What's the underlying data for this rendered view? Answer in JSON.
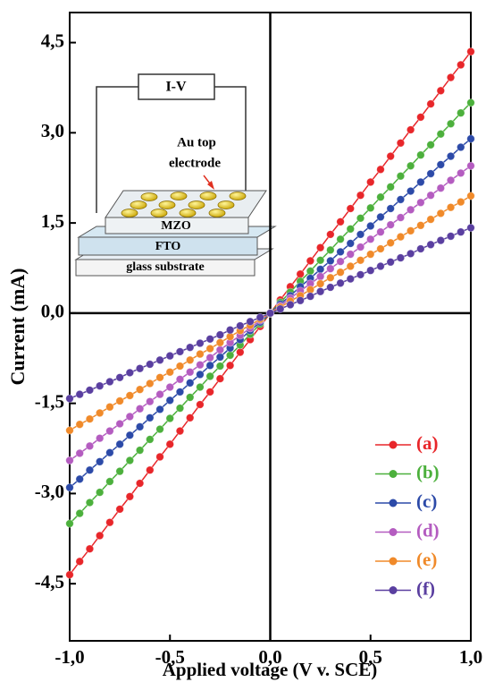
{
  "chart_data": {
    "type": "line",
    "xlabel": "Applied voltage (V v. SCE)",
    "ylabel": "Current (mA)",
    "xlim": [
      -1,
      1
    ],
    "ylim": [
      -5.45,
      5.0
    ],
    "xticks": [
      {
        "value": -1,
        "label": "-1,0"
      },
      {
        "value": -0.5,
        "label": "-0,5"
      },
      {
        "value": 0,
        "label": "0,0"
      },
      {
        "value": 0.5,
        "label": "0,5"
      },
      {
        "value": 1,
        "label": "1,0"
      }
    ],
    "yticks": [
      {
        "value": -4.5,
        "label": "-4,5"
      },
      {
        "value": -3,
        "label": "-3,0"
      },
      {
        "value": -1.5,
        "label": "-1,5"
      },
      {
        "value": 0,
        "label": "0,0"
      },
      {
        "value": 1.5,
        "label": "1,5"
      },
      {
        "value": 3,
        "label": "3,0"
      },
      {
        "value": 4.5,
        "label": "4,5"
      }
    ],
    "x": [
      -1,
      -0.95,
      -0.9,
      -0.85,
      -0.8,
      -0.75,
      -0.7,
      -0.65,
      -0.6,
      -0.55,
      -0.5,
      -0.45,
      -0.4,
      -0.35,
      -0.3,
      -0.25,
      -0.2,
      -0.15,
      -0.1,
      -0.05,
      0,
      0.05,
      0.1,
      0.15,
      0.2,
      0.25,
      0.3,
      0.35,
      0.4,
      0.45,
      0.5,
      0.55,
      0.6,
      0.65,
      0.7,
      0.75,
      0.8,
      0.85,
      0.9,
      0.95,
      1
    ],
    "series": [
      {
        "name": "(a)",
        "color": "#e8262a",
        "values": [
          -4.35,
          -4.13,
          -3.92,
          -3.7,
          -3.48,
          -3.26,
          -3.05,
          -2.83,
          -2.61,
          -2.39,
          -2.18,
          -1.96,
          -1.74,
          -1.52,
          -1.31,
          -1.09,
          -0.87,
          -0.65,
          -0.44,
          -0.22,
          0,
          0.22,
          0.44,
          0.65,
          0.87,
          1.09,
          1.31,
          1.52,
          1.74,
          1.96,
          2.18,
          2.39,
          2.61,
          2.83,
          3.05,
          3.26,
          3.48,
          3.7,
          3.92,
          4.13,
          4.35
        ]
      },
      {
        "name": "(b)",
        "color": "#4cb03c",
        "values": [
          -3.5,
          -3.33,
          -3.15,
          -2.98,
          -2.8,
          -2.63,
          -2.45,
          -2.28,
          -2.1,
          -1.93,
          -1.75,
          -1.58,
          -1.4,
          -1.23,
          -1.05,
          -0.88,
          -0.7,
          -0.53,
          -0.35,
          -0.18,
          0,
          0.18,
          0.35,
          0.53,
          0.7,
          0.88,
          1.05,
          1.23,
          1.4,
          1.58,
          1.75,
          1.93,
          2.1,
          2.28,
          2.45,
          2.63,
          2.8,
          2.98,
          3.15,
          3.33,
          3.5
        ]
      },
      {
        "name": "(c)",
        "color": "#2c4aa8",
        "values": [
          -2.9,
          -2.76,
          -2.61,
          -2.47,
          -2.32,
          -2.18,
          -2.03,
          -1.89,
          -1.74,
          -1.6,
          -1.45,
          -1.31,
          -1.16,
          -1.02,
          -0.87,
          -0.73,
          -0.58,
          -0.44,
          -0.29,
          -0.15,
          0,
          0.15,
          0.29,
          0.44,
          0.58,
          0.73,
          0.87,
          1.02,
          1.16,
          1.31,
          1.45,
          1.6,
          1.74,
          1.89,
          2.03,
          2.18,
          2.32,
          2.47,
          2.61,
          2.76,
          2.9
        ]
      },
      {
        "name": "(d)",
        "color": "#b45cc0",
        "values": [
          -2.45,
          -2.33,
          -2.21,
          -2.08,
          -1.96,
          -1.84,
          -1.72,
          -1.59,
          -1.47,
          -1.35,
          -1.23,
          -1.1,
          -0.98,
          -0.86,
          -0.74,
          -0.61,
          -0.49,
          -0.37,
          -0.25,
          -0.12,
          0,
          0.12,
          0.25,
          0.37,
          0.49,
          0.61,
          0.74,
          0.86,
          0.98,
          1.1,
          1.23,
          1.35,
          1.47,
          1.59,
          1.72,
          1.84,
          1.96,
          2.08,
          2.21,
          2.33,
          2.45
        ]
      },
      {
        "name": "(e)",
        "color": "#f08a2a",
        "values": [
          -1.95,
          -1.85,
          -1.76,
          -1.66,
          -1.56,
          -1.46,
          -1.37,
          -1.27,
          -1.17,
          -1.07,
          -0.98,
          -0.88,
          -0.78,
          -0.68,
          -0.59,
          -0.49,
          -0.39,
          -0.29,
          -0.2,
          -0.1,
          0,
          0.1,
          0.2,
          0.29,
          0.39,
          0.49,
          0.59,
          0.68,
          0.78,
          0.88,
          0.98,
          1.07,
          1.17,
          1.27,
          1.37,
          1.46,
          1.56,
          1.66,
          1.76,
          1.85,
          1.95
        ]
      },
      {
        "name": "(f)",
        "color": "#5a3fa0",
        "values": [
          -1.42,
          -1.35,
          -1.28,
          -1.21,
          -1.14,
          -1.07,
          -0.99,
          -0.92,
          -0.85,
          -0.78,
          -0.71,
          -0.64,
          -0.57,
          -0.5,
          -0.43,
          -0.36,
          -0.28,
          -0.21,
          -0.14,
          -0.07,
          0,
          0.07,
          0.14,
          0.21,
          0.28,
          0.36,
          0.43,
          0.5,
          0.57,
          0.64,
          0.71,
          0.78,
          0.85,
          0.92,
          0.99,
          1.07,
          1.14,
          1.21,
          1.28,
          1.35,
          1.42
        ]
      }
    ],
    "legend": "lower right",
    "inset": {
      "meter": "I-V",
      "arrow_label": [
        "Au top",
        "electrode"
      ],
      "layers": [
        "MZO",
        "FTO",
        "glass substrate"
      ]
    }
  }
}
